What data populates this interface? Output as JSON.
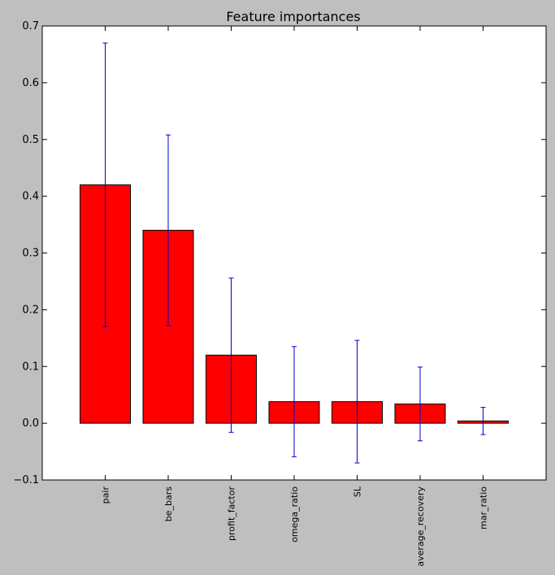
{
  "chart_data": {
    "type": "bar",
    "title": "Feature importances",
    "xlabel": "",
    "ylabel": "",
    "categories": [
      "pair",
      "be_bars",
      "profit_factor",
      "omega_ratio",
      "SL",
      "average_recovery",
      "mar_ratio"
    ],
    "values": [
      0.42,
      0.34,
      0.12,
      0.038,
      0.038,
      0.034,
      0.004
    ],
    "error": [
      0.25,
      0.168,
      0.136,
      0.097,
      0.108,
      0.065,
      0.024
    ],
    "ylim": [
      -0.1,
      0.7
    ],
    "yticks": [
      "0.7",
      "0.6",
      "0.5",
      "0.4",
      "0.3",
      "0.2",
      "0.1",
      "0.0",
      "−0.1"
    ],
    "grid": false,
    "bar_color": "#ff0000",
    "error_color": "#0000cc",
    "background": "#bfbfbf",
    "plot_background": "#ffffff"
  }
}
